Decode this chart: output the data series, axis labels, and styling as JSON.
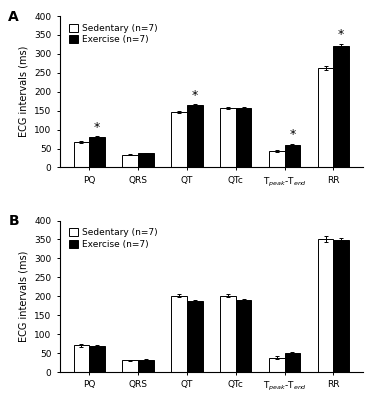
{
  "panel_A": {
    "categories": [
      "PQ",
      "QRS",
      "QT",
      "QTc",
      "T_peak-T_end",
      "RR"
    ],
    "sedentary": [
      67,
      34,
      146,
      157,
      44,
      263
    ],
    "exercise": [
      80,
      37,
      165,
      157,
      60,
      322
    ],
    "sed_err": [
      3,
      2,
      3,
      3,
      3,
      5
    ],
    "exc_err": [
      3,
      2,
      3,
      3,
      3,
      5
    ],
    "significant": [
      true,
      false,
      true,
      false,
      true,
      true
    ]
  },
  "panel_B": {
    "categories": [
      "PQ",
      "QRS",
      "QT",
      "QTc",
      "T_peak-T_end",
      "RR"
    ],
    "sedentary": [
      70,
      31,
      201,
      201,
      38,
      352
    ],
    "exercise": [
      69,
      33,
      188,
      189,
      49,
      349
    ],
    "sed_err": [
      3,
      2,
      4,
      4,
      3,
      8
    ],
    "exc_err": [
      3,
      2,
      3,
      3,
      5,
      5
    ],
    "significant": [
      false,
      false,
      false,
      false,
      false,
      false
    ]
  },
  "ylim": [
    0,
    400
  ],
  "yticks": [
    0,
    50,
    100,
    150,
    200,
    250,
    300,
    350,
    400
  ],
  "ylabel": "ECG intervals (ms)",
  "bar_width": 0.32,
  "sed_color": "#ffffff",
  "exc_color": "#000000",
  "sed_edge": "#000000",
  "exc_edge": "#000000",
  "legend_sed": "Sedentary (n=7)",
  "legend_exc": "Exercise (n=7)",
  "panel_A_label": "A",
  "panel_B_label": "B",
  "fontsize": 7,
  "tick_fontsize": 6.5,
  "star_fontsize": 9
}
